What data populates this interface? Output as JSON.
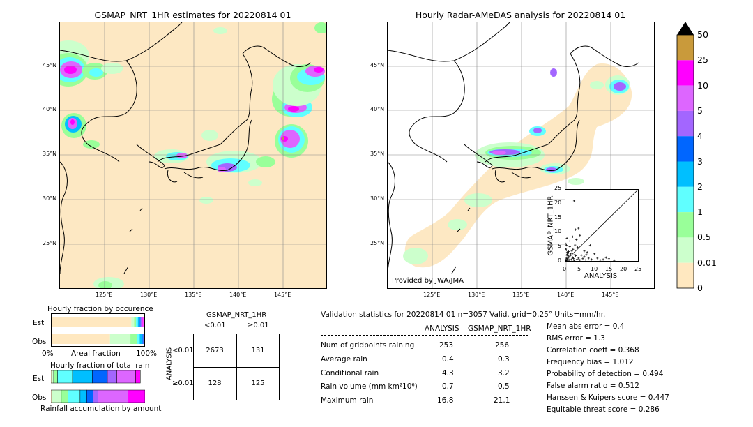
{
  "left_map": {
    "title": "GSMAP_NRT_1HR estimates for 20220814 01",
    "lat_ticks": [
      "45°N",
      "40°N",
      "35°N",
      "30°N",
      "25°N"
    ],
    "lon_ticks": [
      "125°E",
      "130°E",
      "135°E",
      "140°E",
      "145°E"
    ]
  },
  "right_map": {
    "title": "Hourly Radar-AMeDAS analysis for 20220814 01",
    "lat_ticks": [
      "45°N",
      "40°N",
      "35°N",
      "30°N",
      "25°N"
    ],
    "lon_ticks": [
      "125°E",
      "130°E",
      "135°E",
      "140°E",
      "145°E"
    ],
    "credit": "Provided by JWA/JMA"
  },
  "colorbar": {
    "labels": [
      "50",
      "25",
      "10",
      "5",
      "4",
      "3",
      "2",
      "1",
      "0.5",
      "0.01",
      "0"
    ],
    "colors": [
      "#c99a3b",
      "#ff00ff",
      "#dd66ff",
      "#a366ff",
      "#0066ff",
      "#00bfff",
      "#60ffff",
      "#99ff99",
      "#ccffcc",
      "#ffe8c0"
    ]
  },
  "chart_data": [
    {
      "type": "scatter",
      "xlabel": "ANALYSIS",
      "ylabel": "GSMAP_NRT_1HR",
      "xlim": [
        0,
        25
      ],
      "ylim": [
        0,
        25
      ],
      "x_ticks": [
        "0",
        "5",
        "10",
        "15",
        "20",
        "25"
      ],
      "y_ticks": [
        "0",
        "5",
        "10",
        "15",
        "20",
        "25"
      ],
      "points": [
        [
          0.1,
          0.2
        ],
        [
          0.2,
          0.5
        ],
        [
          0.3,
          1.0
        ],
        [
          0.4,
          0.1
        ],
        [
          0.5,
          2.0
        ],
        [
          0.6,
          3.0
        ],
        [
          0.8,
          4.5
        ],
        [
          1.0,
          0.3
        ],
        [
          1.2,
          1.5
        ],
        [
          1.5,
          5.0
        ],
        [
          0.2,
          6.0
        ],
        [
          0.4,
          5.5
        ],
        [
          0.7,
          0.8
        ],
        [
          1.8,
          2.5
        ],
        [
          2.0,
          0.5
        ],
        [
          2.5,
          1.2
        ],
        [
          3.0,
          0.2
        ],
        [
          3.5,
          1.8
        ],
        [
          4.0,
          0.6
        ],
        [
          2.2,
          3.5
        ],
        [
          1.0,
          2.8
        ],
        [
          0.3,
          3.8
        ],
        [
          0.9,
          1.9
        ],
        [
          1.4,
          0.4
        ],
        [
          2.8,
          0.9
        ],
        [
          3.2,
          2.2
        ],
        [
          4.5,
          1.0
        ],
        [
          5.0,
          0.3
        ],
        [
          5.5,
          2.0
        ],
        [
          6.0,
          0.8
        ],
        [
          6.5,
          1.5
        ],
        [
          7.0,
          0.4
        ],
        [
          7.5,
          3.0
        ],
        [
          8.0,
          1.0
        ],
        [
          9.0,
          0.5
        ],
        [
          10.0,
          2.5
        ],
        [
          11.0,
          1.0
        ],
        [
          12.0,
          0.3
        ],
        [
          13.0,
          0.5
        ],
        [
          14.0,
          1.2
        ],
        [
          15.0,
          0.8
        ],
        [
          16.8,
          0.2
        ],
        [
          3.0,
          21.1
        ],
        [
          3.5,
          11.0
        ],
        [
          4.5,
          11.5
        ],
        [
          5.0,
          9.0
        ],
        [
          3.8,
          7.5
        ],
        [
          2.5,
          8.5
        ],
        [
          1.5,
          7.0
        ],
        [
          0.5,
          8.0
        ],
        [
          9.5,
          4.5
        ],
        [
          8.5,
          5.5
        ],
        [
          6.5,
          3.5
        ],
        [
          4.2,
          4.8
        ],
        [
          0.1,
          4.2
        ],
        [
          0.6,
          2.4
        ],
        [
          1.1,
          3.3
        ],
        [
          2.6,
          4.1
        ],
        [
          3.3,
          5.6
        ],
        [
          7.2,
          2.2
        ]
      ]
    },
    {
      "type": "bar",
      "title": "Hourly fraction by occurence",
      "categories": [
        "Est",
        "Obs"
      ],
      "x_ticks": [
        "0%",
        "Areal fraction",
        "100%"
      ],
      "series": [
        {
          "category": "Est",
          "segments": [
            {
              "color": "#ffe8c0",
              "value": 0.86
            },
            {
              "color": "#ccffcc",
              "value": 0.03
            },
            {
              "color": "#99ff99",
              "value": 0.02
            },
            {
              "color": "#60ffff",
              "value": 0.02
            },
            {
              "color": "#00bfff",
              "value": 0.02
            },
            {
              "color": "#0066ff",
              "value": 0.01
            },
            {
              "color": "#a366ff",
              "value": 0.01
            },
            {
              "color": "#dd66ff",
              "value": 0.01
            },
            {
              "color": "#ff00ff",
              "value": 0.01
            }
          ]
        },
        {
          "category": "Obs",
          "segments": [
            {
              "color": "#ffe8c0",
              "value": 0.63
            },
            {
              "color": "#ccffcc",
              "value": 0.22
            },
            {
              "color": "#99ff99",
              "value": 0.07
            },
            {
              "color": "#60ffff",
              "value": 0.03
            },
            {
              "color": "#00bfff",
              "value": 0.03
            },
            {
              "color": "#0066ff",
              "value": 0.01
            },
            {
              "color": "#a366ff",
              "value": 0.01
            }
          ]
        }
      ]
    },
    {
      "type": "bar",
      "title": "Hourly fraction of total rain",
      "xlabel": "Rainfall accumulation by amount",
      "categories": [
        "Est",
        "Obs"
      ],
      "series": [
        {
          "category": "Est",
          "segments": [
            {
              "color": "#ffe8c0",
              "value": 0.01
            },
            {
              "color": "#ccffcc",
              "value": 0.02
            },
            {
              "color": "#99ff99",
              "value": 0.04
            },
            {
              "color": "#60ffff",
              "value": 0.16
            },
            {
              "color": "#00bfff",
              "value": 0.21
            },
            {
              "color": "#0066ff",
              "value": 0.16
            },
            {
              "color": "#a366ff",
              "value": 0.1
            },
            {
              "color": "#dd66ff",
              "value": 0.2
            },
            {
              "color": "#ff00ff",
              "value": 0.05
            }
          ]
        },
        {
          "category": "Obs",
          "segments": [
            {
              "color": "#ffe8c0",
              "value": 0.01
            },
            {
              "color": "#ccffcc",
              "value": 0.1
            },
            {
              "color": "#99ff99",
              "value": 0.07
            },
            {
              "color": "#60ffff",
              "value": 0.13
            },
            {
              "color": "#00bfff",
              "value": 0.07
            },
            {
              "color": "#0066ff",
              "value": 0.07
            },
            {
              "color": "#a366ff",
              "value": 0.05
            },
            {
              "color": "#dd66ff",
              "value": 0.32
            },
            {
              "color": "#ff00ff",
              "value": 0.18
            }
          ]
        }
      ]
    },
    {
      "type": "table",
      "title": "GSMAP_NRT_1HR",
      "col_headers": [
        "<0.01",
        "≥0.01"
      ],
      "row_axis_label": "ANALYSIS",
      "row_headers": [
        "<0.01",
        "≥0.01"
      ],
      "cells": [
        [
          "2673",
          "131"
        ],
        [
          "128",
          "125"
        ]
      ]
    }
  ],
  "validation": {
    "header": "Validation statistics for 20220814 01  n=3057 Valid. grid=0.25° Units=mm/hr.",
    "col_analysis": "ANALYSIS",
    "col_gsmap": "GSMAP_NRT_1HR",
    "rows": [
      {
        "label": "Num of gridpoints raining",
        "analysis": "253",
        "gsmap": "256"
      },
      {
        "label": "Average rain",
        "analysis": "0.4",
        "gsmap": "0.3"
      },
      {
        "label": "Conditional rain",
        "analysis": "4.3",
        "gsmap": "3.2"
      },
      {
        "label": "Rain volume (mm km²10⁶)",
        "analysis": "0.7",
        "gsmap": "0.5"
      },
      {
        "label": "Maximum rain",
        "analysis": "16.8",
        "gsmap": "21.1"
      }
    ],
    "scores": [
      "Mean abs error =    0.4",
      "RMS error =    1.3",
      "Correlation coeff =  0.368",
      "Frequency bias =  1.012",
      "Probability of detection =  0.494",
      "False alarm ratio =  0.512",
      "Hanssen & Kuipers score =  0.447",
      "Equitable threat score =  0.286"
    ]
  }
}
